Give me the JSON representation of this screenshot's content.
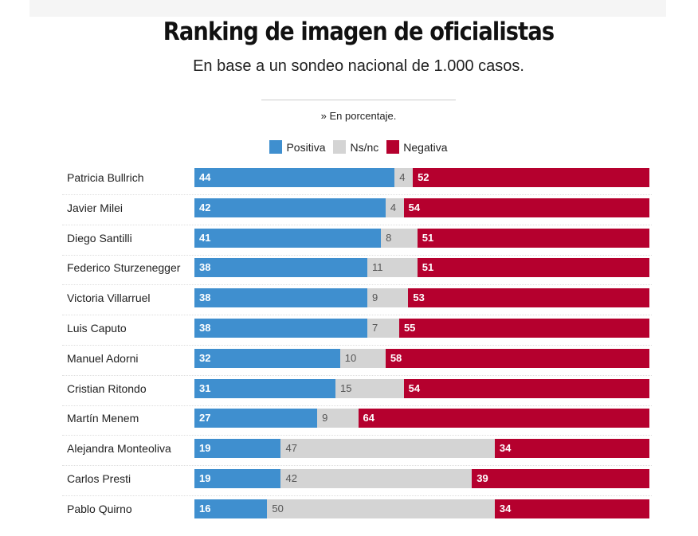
{
  "title": "Ranking de imagen de oficialistas",
  "subtitle": "En base a un sondeo nacional de 1.000 casos.",
  "note": "» En porcentaje.",
  "colors": {
    "positiva": "#3f8fcf",
    "nsnc": "#d4d4d4",
    "negativa": "#b5002e"
  },
  "chart_data": {
    "type": "bar",
    "stacked": true,
    "orientation": "horizontal",
    "title": "Ranking de imagen de oficialistas",
    "subtitle": "En base a un sondeo nacional de 1.000 casos.",
    "legend": [
      "Positiva",
      "Ns/nc",
      "Negativa"
    ],
    "legend_placement": "top",
    "xlim": [
      0,
      100
    ],
    "grid": false,
    "categories": [
      "Patricia Bullrich",
      "Javier Milei",
      "Diego Santilli",
      "Federico Sturzenegger",
      "Victoria Villarruel",
      "Luis Caputo",
      "Manuel Adorni",
      "Cristian Ritondo",
      "Martín Menem",
      "Alejandra Monteoliva",
      "Carlos Presti",
      "Pablo Quirno"
    ],
    "series": [
      {
        "name": "Positiva",
        "values": [
          44,
          42,
          41,
          38,
          38,
          38,
          32,
          31,
          27,
          19,
          19,
          16
        ]
      },
      {
        "name": "Ns/nc",
        "values": [
          4,
          4,
          8,
          11,
          9,
          7,
          10,
          15,
          9,
          47,
          42,
          50
        ]
      },
      {
        "name": "Negativa",
        "values": [
          52,
          54,
          51,
          51,
          53,
          55,
          58,
          54,
          64,
          34,
          39,
          34
        ]
      }
    ]
  }
}
